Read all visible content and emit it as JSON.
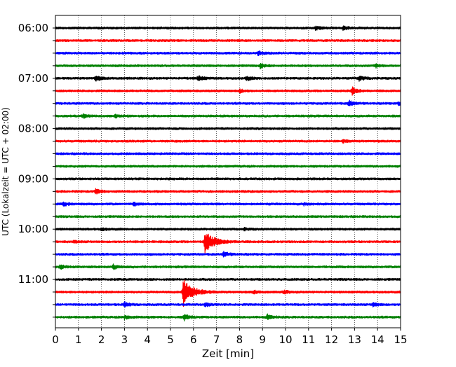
{
  "chart_data": {
    "type": "line",
    "xlabel": "Zeit  [min]",
    "ylabel": "UTC (Lokalzeit = UTC + 02:00)",
    "xlim": [
      0,
      15
    ],
    "x_ticks": [
      0,
      1,
      2,
      3,
      4,
      5,
      6,
      7,
      8,
      9,
      10,
      11,
      12,
      13,
      14,
      15
    ],
    "grid": "vertical dotted",
    "trace_interval_minutes": 15,
    "first_trace_time": "06:00",
    "y_tick_labels": [
      "06:00",
      "07:00",
      "08:00",
      "09:00",
      "10:00",
      "11:00"
    ],
    "color_cycle": [
      "#000000",
      "#ff0000",
      "#0000ff",
      "#008000"
    ],
    "traces": [
      {
        "time": "06:00",
        "events": [
          {
            "t": 11.3,
            "amp": 1.2
          },
          {
            "t": 12.5,
            "amp": 1.1
          }
        ]
      },
      {
        "time": "06:15",
        "events": []
      },
      {
        "time": "06:30",
        "events": [
          {
            "t": 8.8,
            "amp": 1.0
          }
        ]
      },
      {
        "time": "06:45",
        "events": [
          {
            "t": 8.9,
            "amp": 1.3
          },
          {
            "t": 13.9,
            "amp": 0.9
          }
        ]
      },
      {
        "time": "07:00",
        "events": [
          {
            "t": 1.75,
            "amp": 1.3
          },
          {
            "t": 6.2,
            "amp": 1.3
          },
          {
            "t": 8.3,
            "amp": 1.1
          },
          {
            "t": 13.2,
            "amp": 1.2
          }
        ]
      },
      {
        "time": "07:15",
        "events": [
          {
            "t": 8.0,
            "amp": 0.9
          },
          {
            "t": 12.9,
            "amp": 2.0
          }
        ]
      },
      {
        "time": "07:30",
        "events": [
          {
            "t": 12.75,
            "amp": 1.6
          },
          {
            "t": 14.9,
            "amp": 1.0
          }
        ]
      },
      {
        "time": "07:45",
        "events": [
          {
            "t": 1.2,
            "amp": 1.0
          },
          {
            "t": 2.6,
            "amp": 0.8
          }
        ]
      },
      {
        "time": "08:00",
        "events": []
      },
      {
        "time": "08:15",
        "events": [
          {
            "t": 12.5,
            "amp": 0.7
          }
        ]
      },
      {
        "time": "08:30",
        "events": []
      },
      {
        "time": "08:45",
        "events": []
      },
      {
        "time": "09:00",
        "events": []
      },
      {
        "time": "09:15",
        "events": [
          {
            "t": 1.75,
            "amp": 1.8
          }
        ]
      },
      {
        "time": "09:30",
        "events": [
          {
            "t": 0.35,
            "amp": 0.9
          },
          {
            "t": 3.4,
            "amp": 0.8
          },
          {
            "t": 10.8,
            "amp": 0.7
          }
        ]
      },
      {
        "time": "09:45",
        "events": []
      },
      {
        "time": "10:00",
        "events": [
          {
            "t": 2.0,
            "amp": 0.6
          },
          {
            "t": 8.2,
            "amp": 0.6
          }
        ]
      },
      {
        "time": "10:15",
        "events": [
          {
            "t": 6.5,
            "amp": 6.0
          },
          {
            "t": 0.8,
            "amp": 0.5
          }
        ]
      },
      {
        "time": "10:30",
        "events": [
          {
            "t": 7.3,
            "amp": 1.4
          }
        ]
      },
      {
        "time": "10:45",
        "events": [
          {
            "t": 0.2,
            "amp": 1.1
          },
          {
            "t": 2.5,
            "amp": 1.2
          }
        ]
      },
      {
        "time": "11:00",
        "events": []
      },
      {
        "time": "11:15",
        "events": [
          {
            "t": 5.55,
            "amp": 8.0
          },
          {
            "t": 8.6,
            "amp": 0.8
          },
          {
            "t": 9.9,
            "amp": 0.8
          }
        ]
      },
      {
        "time": "11:30",
        "events": [
          {
            "t": 3.0,
            "amp": 1.3
          },
          {
            "t": 6.5,
            "amp": 1.0
          },
          {
            "t": 13.8,
            "amp": 1.1
          }
        ]
      },
      {
        "time": "11:45",
        "events": [
          {
            "t": 3.0,
            "amp": 1.1
          },
          {
            "t": 5.6,
            "amp": 1.6
          },
          {
            "t": 9.2,
            "amp": 1.4
          }
        ]
      }
    ]
  }
}
